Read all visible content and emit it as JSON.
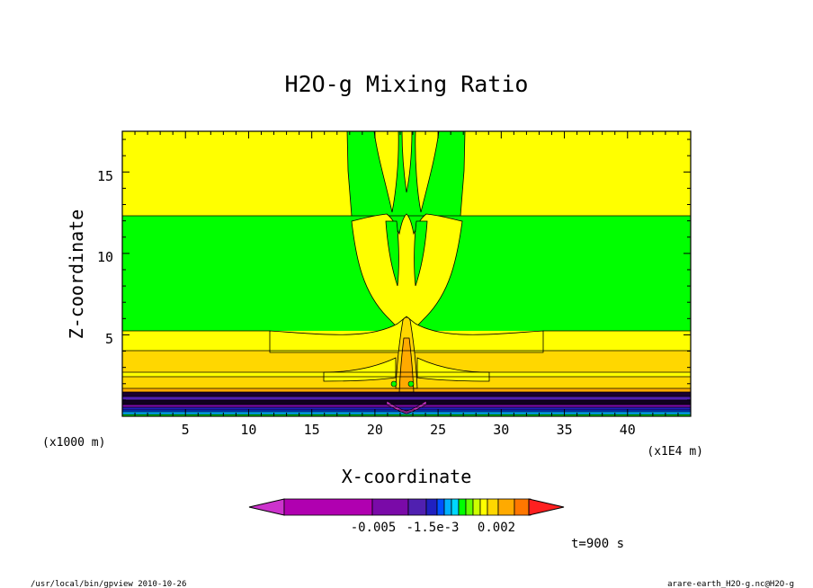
{
  "chart_data": {
    "type": "contour",
    "title": "H2O-g Mixing Ratio",
    "xlabel": "X-coordinate",
    "ylabel": "Z-coordinate",
    "x_unit": "(x1E4 m)",
    "y_unit": "(x1000 m)",
    "xlim": [
      0,
      45
    ],
    "ylim": [
      0,
      17.5
    ],
    "x_ticks": [
      "5",
      "10",
      "15",
      "20",
      "25",
      "30",
      "35",
      "40"
    ],
    "y_ticks": [
      "5",
      "10",
      "15"
    ],
    "time_label": "t=900 s",
    "colorbar": {
      "tick_labels": [
        "-0.005",
        "-1.5e-3",
        "0.002"
      ],
      "colors": [
        "#cc33cc",
        "#b000b0",
        "#7a0aa8",
        "#5020b0",
        "#2020c0",
        "#0050ff",
        "#00b0ff",
        "#00d7ff",
        "#00ff00",
        "#66ff00",
        "#ccff00",
        "#ffff00",
        "#ffd700",
        "#ffaa00",
        "#ff7700",
        "#ff2020"
      ]
    },
    "footer_left": "/usr/local/bin/gpview  2010-10-26",
    "footer_right": "arare-earth_H2O-g.nc@H2O-g"
  }
}
